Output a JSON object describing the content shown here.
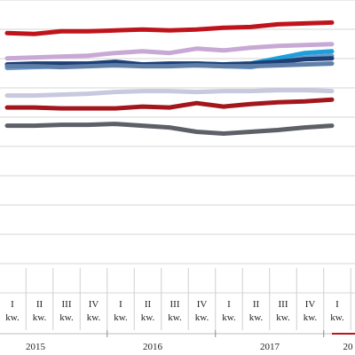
{
  "chart_data": {
    "type": "line",
    "grid": true,
    "legend": "none",
    "title": "",
    "xlabel": "",
    "ylabel": "",
    "ylim": [
      0,
      100
    ],
    "categories": [
      {
        "q": "I",
        "suffix": "kw.",
        "year": "2015"
      },
      {
        "q": "II",
        "suffix": "kw.",
        "year": "2015"
      },
      {
        "q": "III",
        "suffix": "kw.",
        "year": "2015"
      },
      {
        "q": "IV",
        "suffix": "kw.",
        "year": "2015"
      },
      {
        "q": "I",
        "suffix": "kw.",
        "year": "2016"
      },
      {
        "q": "II",
        "suffix": "kw.",
        "year": "2016"
      },
      {
        "q": "III",
        "suffix": "kw.",
        "year": "2016"
      },
      {
        "q": "IV",
        "suffix": "kw.",
        "year": "2016"
      },
      {
        "q": "I",
        "suffix": "kw.",
        "year": "2017"
      },
      {
        "q": "II",
        "suffix": "kw.",
        "year": "2017"
      },
      {
        "q": "III",
        "suffix": "kw.",
        "year": "2017"
      },
      {
        "q": "IV",
        "suffix": "kw.",
        "year": "2017"
      },
      {
        "q": "I",
        "suffix": "kw.",
        "year": "2018"
      }
    ],
    "years": [
      {
        "label": "2015"
      },
      {
        "label": "2016"
      },
      {
        "label": "2017"
      },
      {
        "label": "20"
      }
    ],
    "series": [
      {
        "color": "#c0141c",
        "values": [
          88.7,
          88.4,
          89.3,
          89.3,
          89.6,
          89.9,
          89.6,
          89.9,
          90.5,
          90.8,
          91.7,
          92.0,
          92.3
        ]
      },
      {
        "color": "#c8a8d4",
        "values": [
          80.1,
          80.4,
          80.7,
          81.0,
          81.9,
          82.5,
          81.9,
          83.4,
          82.8,
          83.7,
          84.3,
          84.6,
          84.9
        ]
      },
      {
        "color": "#1e9fd9",
        "values": [
          77.4,
          77.7,
          77.7,
          77.7,
          78.0,
          77.7,
          78.0,
          78.3,
          78.0,
          78.3,
          80.1,
          81.9,
          82.5
        ]
      },
      {
        "color": "#6b9ccf",
        "values": [
          76.8,
          77.1,
          77.4,
          77.7,
          78.0,
          78.0,
          78.0,
          77.7,
          77.4,
          77.1,
          78.6,
          80.4,
          81.0
        ]
      },
      {
        "color": "#1e3f74",
        "values": [
          78.0,
          78.3,
          78.3,
          78.3,
          78.9,
          78.0,
          78.3,
          78.3,
          78.0,
          78.3,
          78.9,
          79.8,
          80.1
        ]
      },
      {
        "color": "#5f7fa8",
        "values": [
          77.4,
          77.4,
          77.1,
          77.4,
          77.7,
          77.4,
          77.4,
          77.7,
          77.4,
          77.4,
          77.7,
          78.0,
          78.3
        ]
      },
      {
        "color": "#c8c8de",
        "values": [
          67.4,
          67.4,
          67.7,
          68.0,
          68.6,
          68.9,
          68.9,
          68.6,
          68.9,
          68.9,
          69.2,
          69.2,
          68.9
        ]
      },
      {
        "color": "#a3161c",
        "values": [
          63.3,
          63.3,
          63.0,
          63.0,
          63.0,
          63.6,
          63.3,
          64.8,
          63.6,
          64.5,
          65.1,
          65.4,
          66.0
        ]
      },
      {
        "color": "#5e6068",
        "values": [
          57.1,
          57.1,
          57.4,
          57.4,
          57.7,
          57.1,
          56.5,
          55.0,
          54.4,
          55.0,
          55.6,
          56.5,
          57.1
        ]
      }
    ]
  }
}
